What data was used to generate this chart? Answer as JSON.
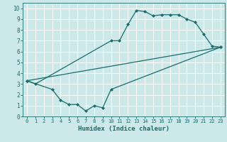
{
  "title": "",
  "xlabel": "Humidex (Indice chaleur)",
  "ylabel": "",
  "bg_color": "#cce8e8",
  "grid_color": "#ffffff",
  "line_color": "#1a6b6b",
  "xlim": [
    -0.5,
    23.5
  ],
  "ylim": [
    0,
    10.5
  ],
  "xticks": [
    0,
    1,
    2,
    3,
    4,
    5,
    6,
    7,
    8,
    9,
    10,
    11,
    12,
    13,
    14,
    15,
    16,
    17,
    18,
    19,
    20,
    21,
    22,
    23
  ],
  "yticks": [
    0,
    1,
    2,
    3,
    4,
    5,
    6,
    7,
    8,
    9,
    10
  ],
  "line1_x": [
    0,
    1,
    10,
    11,
    12,
    13,
    14,
    15,
    16,
    17,
    18,
    19,
    20,
    21,
    22,
    23
  ],
  "line1_y": [
    3.3,
    3.0,
    7.0,
    7.0,
    8.5,
    9.8,
    9.7,
    9.3,
    9.4,
    9.4,
    9.4,
    9.0,
    8.7,
    7.6,
    6.5,
    6.4
  ],
  "line2_x": [
    0,
    3,
    4,
    5,
    6,
    7,
    8,
    9,
    10,
    23
  ],
  "line2_y": [
    3.3,
    2.5,
    1.5,
    1.1,
    1.1,
    0.5,
    1.0,
    0.8,
    2.5,
    6.4
  ],
  "line3_x": [
    0,
    23
  ],
  "line3_y": [
    3.3,
    6.4
  ],
  "marker_size": 2.5,
  "linewidth": 0.9
}
